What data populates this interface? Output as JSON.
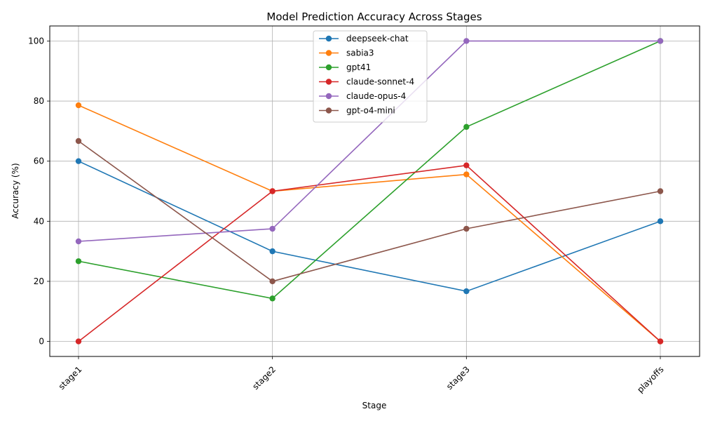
{
  "chart_data": {
    "type": "line",
    "title": "Model Prediction Accuracy Across Stages",
    "xlabel": "Stage",
    "ylabel": "Accuracy (%)",
    "categories": [
      "stage1",
      "stage2",
      "stage3",
      "playoffs"
    ],
    "ylim": [
      -5,
      105
    ],
    "yticks": [
      0,
      20,
      40,
      60,
      80,
      100
    ],
    "grid": true,
    "legend_position": "upper center",
    "series": [
      {
        "name": "deepseek-chat",
        "color": "#1f77b4",
        "values": [
          60.0,
          30.0,
          16.7,
          40.0
        ]
      },
      {
        "name": "sabia3",
        "color": "#ff7f0e",
        "values": [
          78.6,
          50.0,
          55.6,
          0.0
        ]
      },
      {
        "name": "gpt41",
        "color": "#2ca02c",
        "values": [
          26.7,
          14.3,
          71.4,
          100.0
        ]
      },
      {
        "name": "claude-sonnet-4",
        "color": "#d62728",
        "values": [
          0.0,
          50.0,
          58.6,
          0.0
        ]
      },
      {
        "name": "claude-opus-4",
        "color": "#9467bd",
        "values": [
          33.3,
          37.5,
          100.0,
          100.0
        ]
      },
      {
        "name": "gpt-o4-mini",
        "color": "#8c564b",
        "values": [
          66.7,
          20.0,
          37.5,
          50.0
        ]
      }
    ]
  }
}
